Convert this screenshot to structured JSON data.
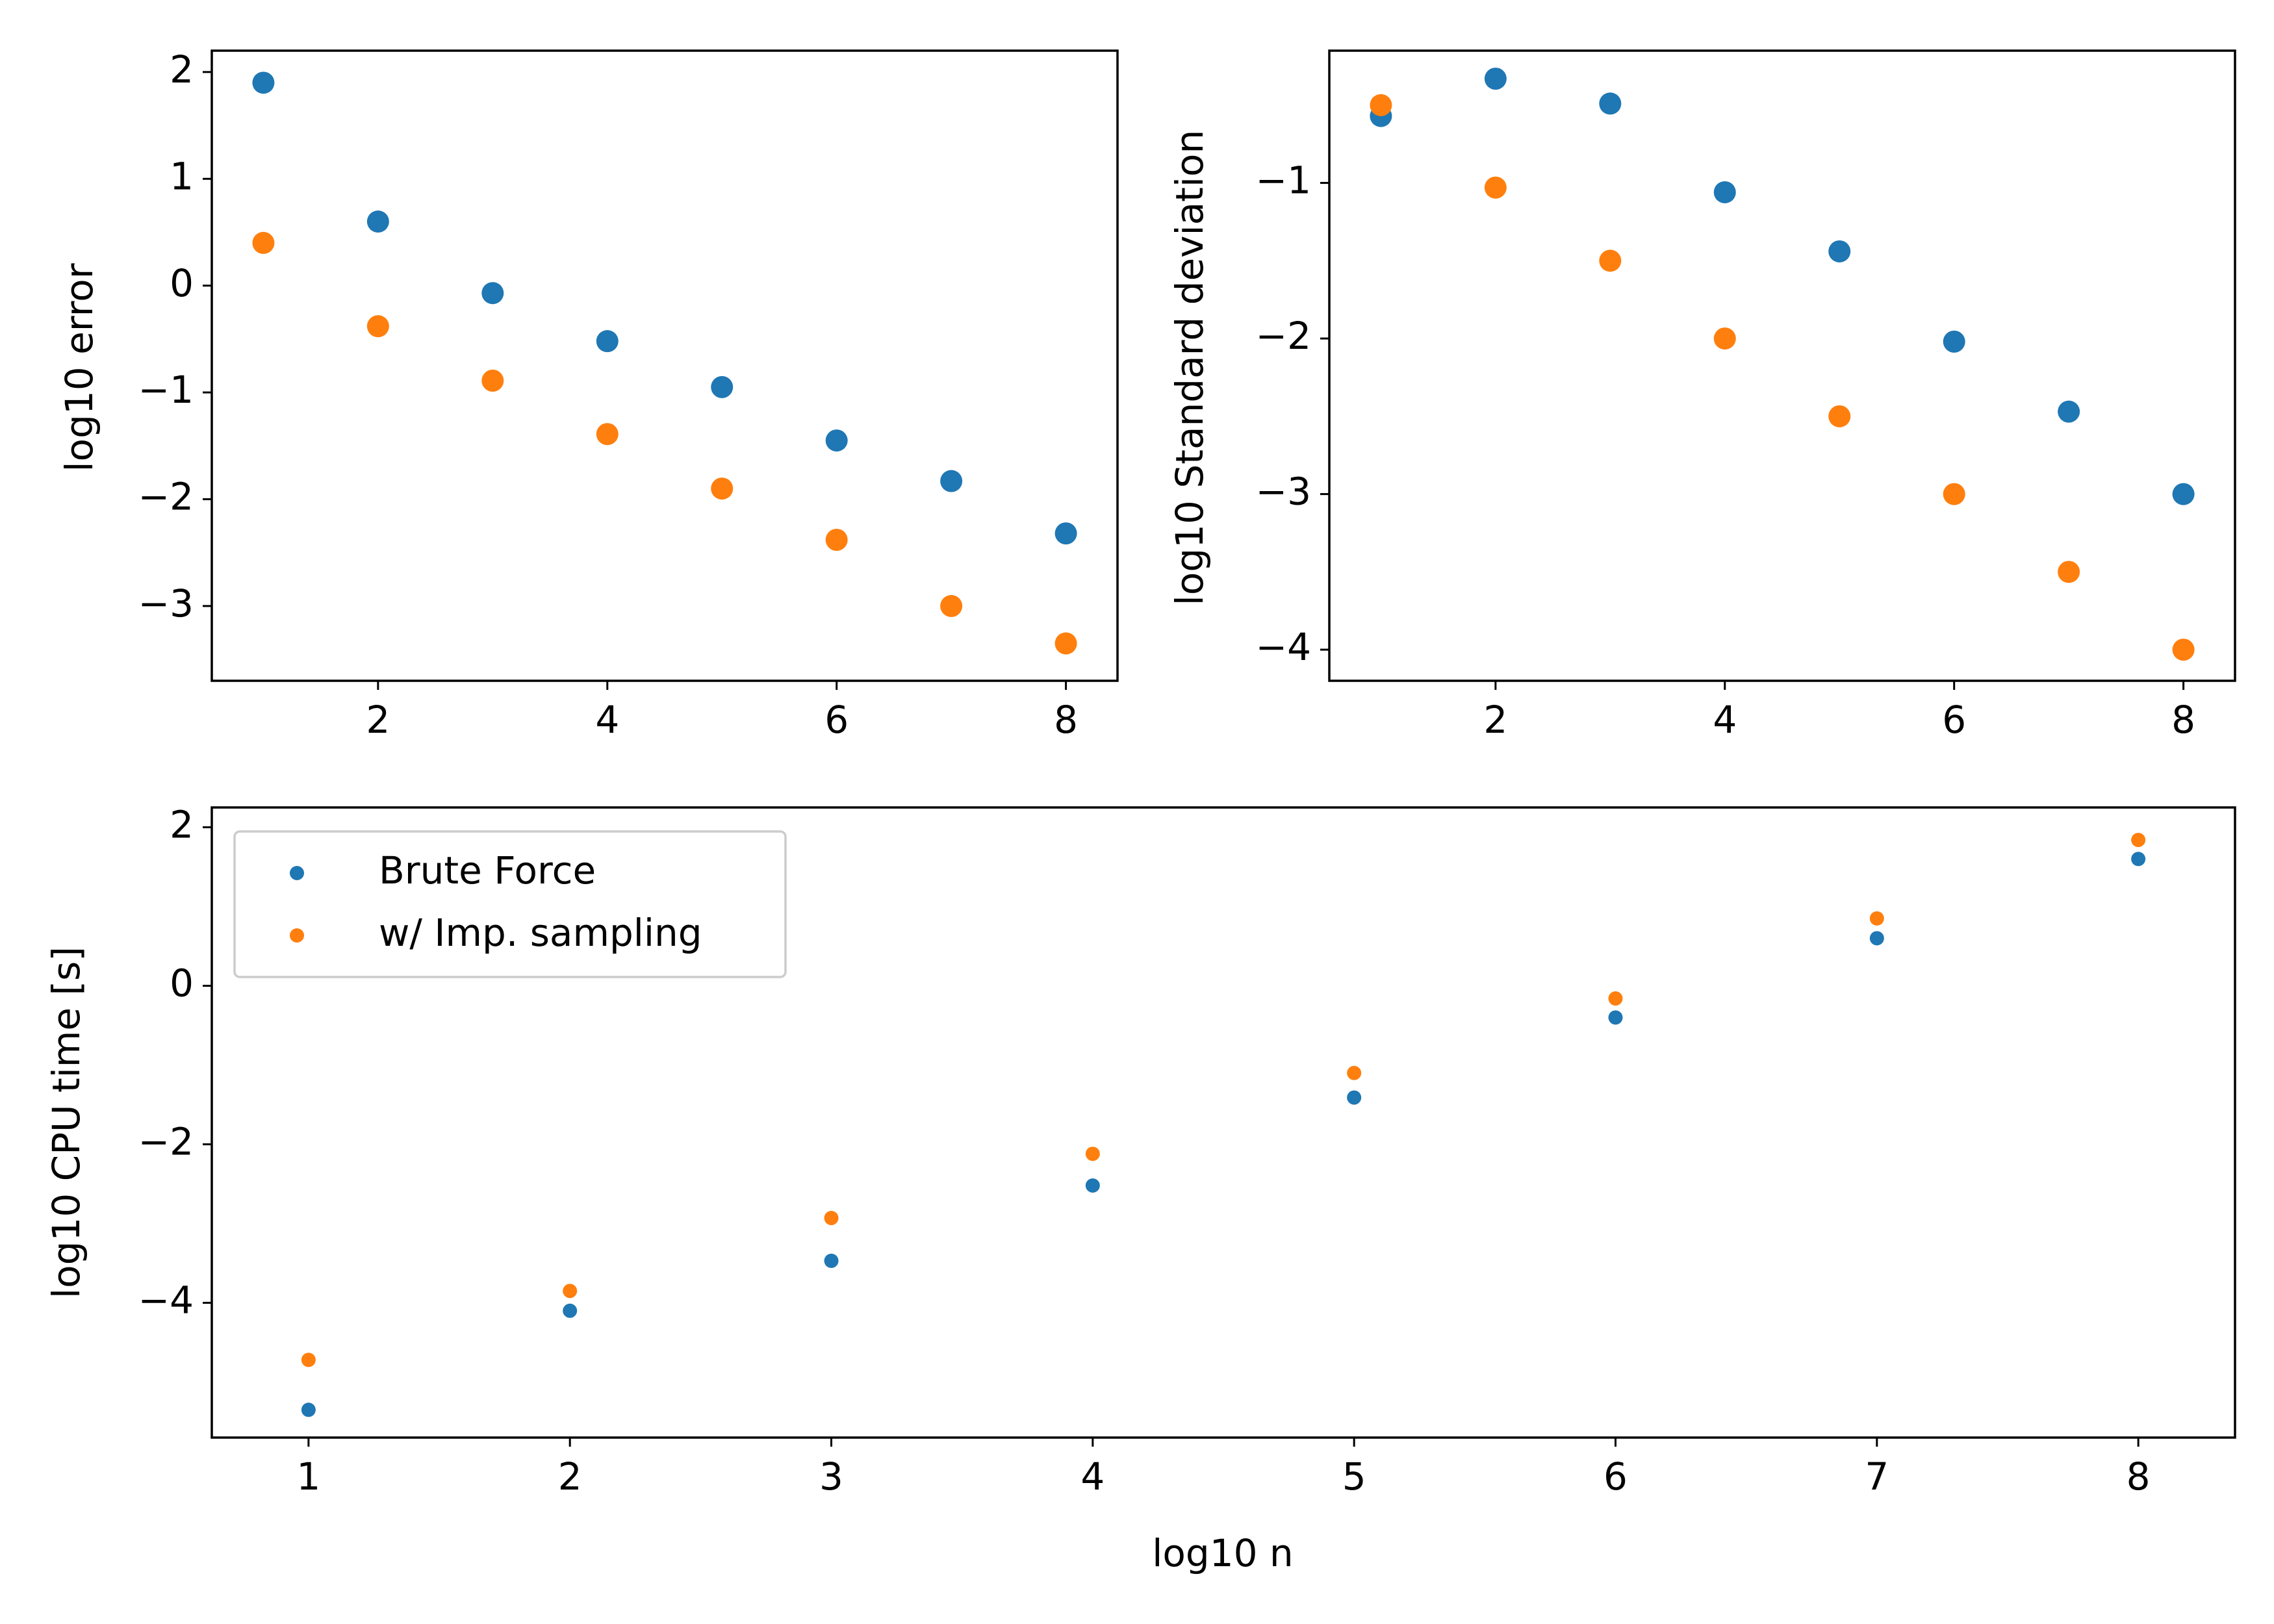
{
  "colors": {
    "brute_force": "#1f77b4",
    "imp_sampling": "#ff7f0e",
    "axes": "#000000",
    "legend_border": "#cccccc"
  },
  "chart_data": [
    {
      "id": "error",
      "type": "scatter",
      "title": "",
      "xlabel": "",
      "ylabel": "log10 error",
      "xlim": [
        0.55,
        8.45
      ],
      "ylim": [
        -3.7,
        2.2
      ],
      "xticks": [
        2,
        4,
        6,
        8
      ],
      "yticks": [
        -3,
        -2,
        -1,
        0,
        1,
        2
      ],
      "grid": false,
      "legend": false,
      "series": [
        {
          "key": "brute_force",
          "x": [
            1,
            2,
            3,
            4,
            5,
            6,
            7,
            8
          ],
          "y": [
            1.9,
            0.6,
            -0.07,
            -0.52,
            -0.95,
            -1.45,
            -1.83,
            -2.32
          ]
        },
        {
          "key": "imp_sampling",
          "x": [
            1,
            2,
            3,
            4,
            5,
            6,
            7,
            8
          ],
          "y": [
            0.4,
            -0.38,
            -0.89,
            -1.39,
            -1.9,
            -2.38,
            -3.0,
            -3.35
          ]
        }
      ]
    },
    {
      "id": "stddev",
      "type": "scatter",
      "title": "",
      "xlabel": "",
      "ylabel": "log10 Standard deviation",
      "xlim": [
        0.55,
        8.45
      ],
      "ylim": [
        -4.2,
        -0.15
      ],
      "xticks": [
        2,
        4,
        6,
        8
      ],
      "yticks": [
        -4,
        -3,
        -2,
        -1
      ],
      "grid": false,
      "legend": false,
      "series": [
        {
          "key": "brute_force",
          "x": [
            1,
            2,
            3,
            4,
            5,
            6,
            7,
            8
          ],
          "y": [
            -0.57,
            -0.33,
            -0.49,
            -1.06,
            -1.44,
            -2.02,
            -2.47,
            -3.0
          ]
        },
        {
          "key": "imp_sampling",
          "x": [
            1,
            2,
            3,
            4,
            5,
            6,
            7,
            8
          ],
          "y": [
            -0.5,
            -1.03,
            -1.5,
            -2.0,
            -2.5,
            -3.0,
            -3.5,
            -4.0
          ]
        }
      ]
    },
    {
      "id": "cputime",
      "type": "scatter",
      "title": "",
      "xlabel": "log10 n",
      "ylabel": "log10 CPU time [s]",
      "xlim": [
        0.63,
        8.37
      ],
      "ylim": [
        -5.7,
        2.25
      ],
      "xticks": [
        1,
        2,
        3,
        4,
        5,
        6,
        7,
        8
      ],
      "yticks": [
        -4,
        -2,
        0,
        2
      ],
      "grid": false,
      "legend": true,
      "legend_position": "upper-left",
      "series": [
        {
          "key": "brute_force",
          "name": "Brute Force",
          "x": [
            1,
            2,
            3,
            4,
            5,
            6,
            7,
            8
          ],
          "y": [
            -5.35,
            -4.1,
            -3.47,
            -2.52,
            -1.41,
            -0.4,
            0.6,
            1.6
          ]
        },
        {
          "key": "imp_sampling",
          "name": "w/ Imp. sampling",
          "x": [
            1,
            2,
            3,
            4,
            5,
            6,
            7,
            8
          ],
          "y": [
            -4.72,
            -3.85,
            -2.93,
            -2.12,
            -1.1,
            -0.16,
            0.85,
            1.84
          ]
        }
      ]
    }
  ]
}
